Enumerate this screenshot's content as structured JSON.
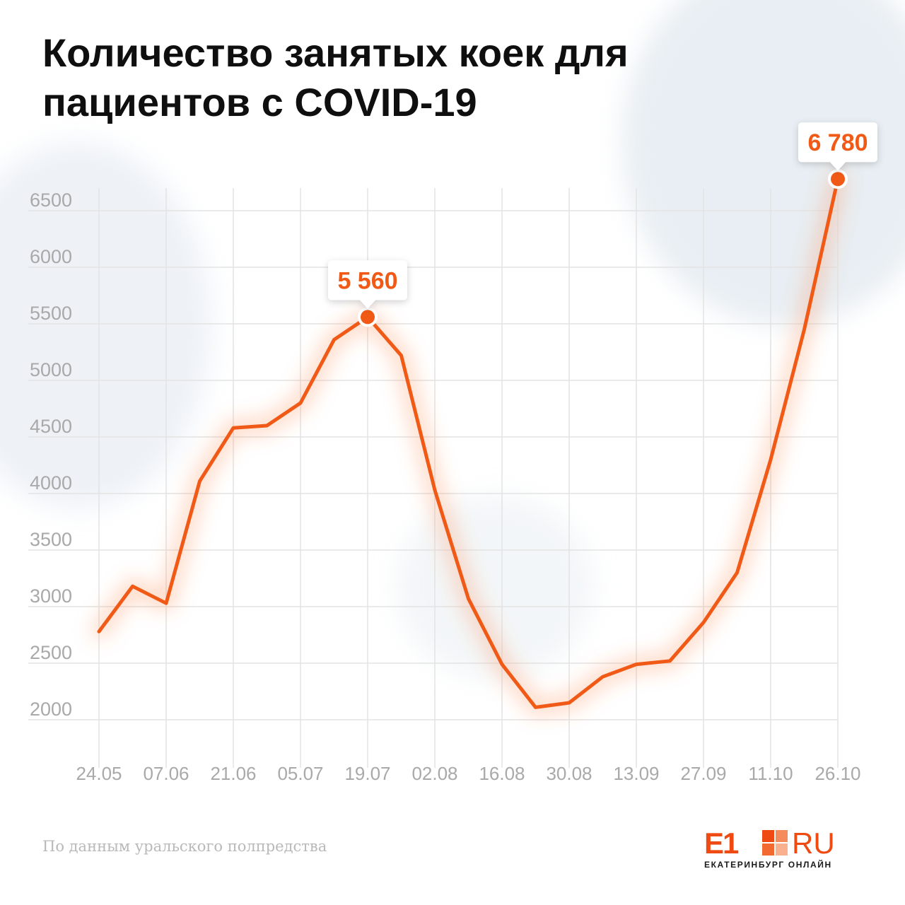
{
  "title_line1": "Количество занятых коек для",
  "title_line2": "пациентов с COVID-19",
  "source": "По данным уральского полпредства",
  "logo": {
    "mark": "E1",
    "domain": "RU",
    "tagline": "ЕКАТЕРИНБУРГ ОНЛАЙН"
  },
  "colors": {
    "accent": "#f15a16",
    "grid": "#e3e3e3",
    "tick_text": "#a9a9a9",
    "title": "#0f0f0f"
  },
  "chart_data": {
    "type": "line",
    "title": "Количество занятых коек для пациентов с COVID-19",
    "xlabel": "",
    "ylabel": "",
    "ylim": [
      1700,
      6700
    ],
    "grid": true,
    "yticks": [
      2000,
      2500,
      3000,
      3500,
      4000,
      4500,
      5000,
      5500,
      6000,
      6500
    ],
    "xtick_labels": [
      "24.05",
      "07.06",
      "21.06",
      "05.07",
      "19.07",
      "02.08",
      "16.08",
      "30.08",
      "13.09",
      "27.09",
      "11.10",
      "26.10"
    ],
    "x": [
      "24.05",
      "31.05",
      "07.06",
      "14.06",
      "21.06",
      "28.06",
      "05.07",
      "12.07",
      "19.07",
      "26.07",
      "02.08",
      "09.08",
      "16.08",
      "23.08",
      "30.08",
      "06.09",
      "13.09",
      "20.09",
      "27.09",
      "04.10",
      "11.10",
      "18.10",
      "26.10"
    ],
    "series": [
      {
        "values": [
          2780,
          3180,
          3030,
          4110,
          4580,
          4600,
          4800,
          5360,
          5560,
          5220,
          4030,
          3070,
          2490,
          2110,
          2150,
          2380,
          2490,
          2520,
          2860,
          3300,
          4300,
          5450,
          6780
        ]
      }
    ],
    "annotations": [
      {
        "x": "19.07",
        "y": 5560,
        "label": "5 560"
      },
      {
        "x": "26.10",
        "y": 6780,
        "label": "6 780"
      }
    ]
  }
}
